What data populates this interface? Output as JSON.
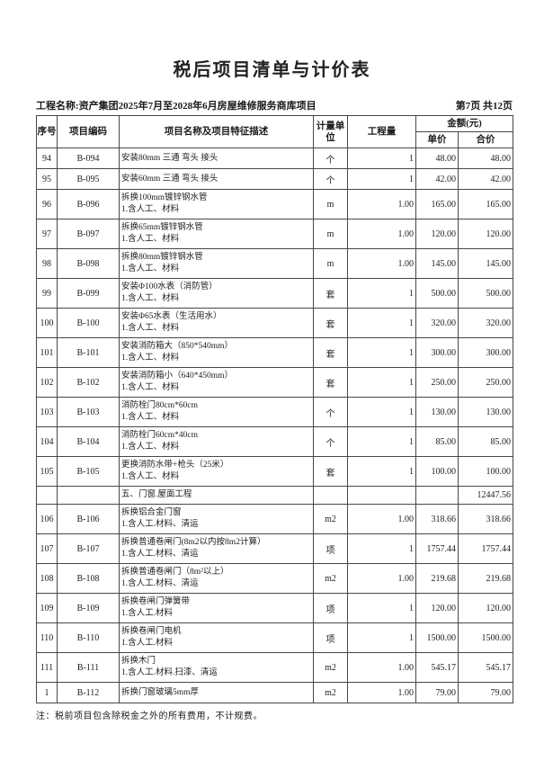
{
  "page": {
    "title": "税后项目清单与计价表",
    "project_label": "工程名称:资产集团2025年7月至2028年6月房屋维修服务商库项目",
    "page_info": "第7页 共12页",
    "note": "注：税前项目包含除税金之外的所有费用，不计规费。"
  },
  "table": {
    "headers": {
      "seq": "序号",
      "code": "项目编码",
      "name": "项目名称及项目特征描述",
      "unit": "计量单位",
      "quantity": "工程量",
      "amount_group": "金额(元)",
      "unit_price": "单价",
      "total_price": "合价"
    },
    "rows": [
      {
        "type": "item",
        "seq": "94",
        "code": "B-094",
        "desc": [
          "安装80mm 三通 弯头 接头"
        ],
        "unit": "个",
        "qty": "1",
        "price": "48.00",
        "total": "48.00"
      },
      {
        "type": "item",
        "seq": "95",
        "code": "B-095",
        "desc": [
          "安装60mm 三通 弯头 接头"
        ],
        "unit": "个",
        "qty": "1",
        "price": "42.00",
        "total": "42.00"
      },
      {
        "type": "item",
        "seq": "96",
        "code": "B-096",
        "desc": [
          "拆换100mm镀锌钢水管",
          "1.含人工、材料"
        ],
        "unit": "m",
        "qty": "1.00",
        "price": "165.00",
        "total": "165.00"
      },
      {
        "type": "item",
        "seq": "97",
        "code": "B-097",
        "desc": [
          "拆换65mm镀锌钢水管",
          "1.含人工、材料"
        ],
        "unit": "m",
        "qty": "1.00",
        "price": "120.00",
        "total": "120.00"
      },
      {
        "type": "item",
        "seq": "98",
        "code": "B-098",
        "desc": [
          "拆换80mm镀锌钢水管",
          "1.含人工、材料"
        ],
        "unit": "m",
        "qty": "1.00",
        "price": "145.00",
        "total": "145.00"
      },
      {
        "type": "item",
        "seq": "99",
        "code": "B-099",
        "desc": [
          "安装Φ100水表（消防管）",
          "1.含人工、材料"
        ],
        "unit": "套",
        "qty": "1",
        "price": "500.00",
        "total": "500.00"
      },
      {
        "type": "item",
        "seq": "100",
        "code": "B-100",
        "desc": [
          "安装Φ65水表（生活用水）",
          "1.含人工、材料"
        ],
        "unit": "套",
        "qty": "1",
        "price": "320.00",
        "total": "320.00"
      },
      {
        "type": "item",
        "seq": "101",
        "code": "B-101",
        "desc": [
          "安装消防箱大（850*540mm）",
          "1.含人工、材料"
        ],
        "unit": "套",
        "qty": "1",
        "price": "300.00",
        "total": "300.00"
      },
      {
        "type": "item",
        "seq": "102",
        "code": "B-102",
        "desc": [
          "安装消防箱小（640*450mm）",
          "1.含人工、材料"
        ],
        "unit": "套",
        "qty": "1",
        "price": "250.00",
        "total": "250.00"
      },
      {
        "type": "item",
        "seq": "103",
        "code": "B-103",
        "desc": [
          "消防栓门80cm*60cm",
          "1.含人工、材料"
        ],
        "unit": "个",
        "qty": "1",
        "price": "130.00",
        "total": "130.00"
      },
      {
        "type": "item",
        "seq": "104",
        "code": "B-104",
        "desc": [
          "消防栓门60cm*40cm",
          "1.含人工、材料"
        ],
        "unit": "个",
        "qty": "1",
        "price": "85.00",
        "total": "85.00"
      },
      {
        "type": "item",
        "seq": "105",
        "code": "B-105",
        "desc": [
          "更换消防水带+枪头（25米）",
          "1.含人工、材料"
        ],
        "unit": "套",
        "qty": "1",
        "price": "100.00",
        "total": "100.00"
      },
      {
        "type": "section",
        "desc": [
          "五、门窗.屋面工程"
        ],
        "total": "12447.56"
      },
      {
        "type": "item",
        "seq": "106",
        "code": "B-106",
        "desc": [
          "拆换铝合金门窗",
          "1.含人工.材料、清运"
        ],
        "unit": "m2",
        "qty": "1.00",
        "price": "318.66",
        "total": "318.66"
      },
      {
        "type": "item",
        "seq": "107",
        "code": "B-107",
        "desc": [
          "拆换普通卷闸门(8m2以内按8m2计算）",
          "1.含人工.材料、清运"
        ],
        "unit": "项",
        "qty": "1",
        "price": "1757.44",
        "total": "1757.44"
      },
      {
        "type": "item",
        "seq": "108",
        "code": "B-108",
        "desc": [
          "拆换普通卷闸门（8m²以上）",
          "1.含人工.材料、清运"
        ],
        "unit": "m2",
        "qty": "1.00",
        "price": "219.68",
        "total": "219.68"
      },
      {
        "type": "item",
        "seq": "109",
        "code": "B-109",
        "desc": [
          "拆换卷闸门弹簧带",
          "1.含人工.材料"
        ],
        "unit": "项",
        "qty": "1",
        "price": "120.00",
        "total": "120.00"
      },
      {
        "type": "item",
        "seq": "110",
        "code": "B-110",
        "desc": [
          "拆换卷闸门电机",
          "1.含人工.材料"
        ],
        "unit": "项",
        "qty": "1",
        "price": "1500.00",
        "total": "1500.00"
      },
      {
        "type": "item",
        "seq": "111",
        "code": "B-111",
        "desc": [
          "拆换木门",
          "1.含人工.材料.扫漆、清运"
        ],
        "unit": "m2",
        "qty": "1.00",
        "price": "545.17",
        "total": "545.17"
      },
      {
        "type": "item",
        "seq": "1",
        "code": "B-112",
        "desc": [
          "拆换门窗玻璃5mm厚"
        ],
        "unit": "m2",
        "qty": "1.00",
        "price": "79.00",
        "total": "79.00"
      }
    ]
  }
}
